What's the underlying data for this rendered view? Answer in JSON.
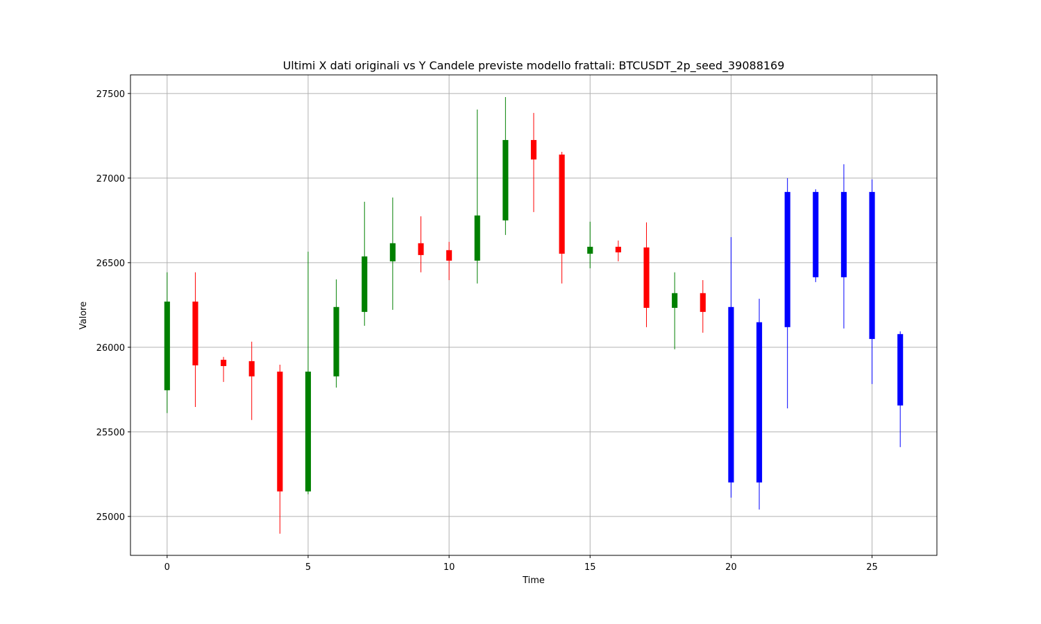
{
  "chart_data": {
    "type": "candlestick",
    "title": "Ultimi X dati originali vs Y Candele previste modello frattali: BTCUSDT_2p_seed_39088169",
    "x_label": "Time",
    "y_label": "Valore",
    "x": [
      0,
      1,
      2,
      3,
      4,
      5,
      6,
      7,
      8,
      9,
      10,
      11,
      12,
      13,
      14,
      15,
      16,
      17,
      18,
      19,
      20,
      21,
      22,
      23,
      24,
      25,
      26
    ],
    "open": [
      25746,
      26270,
      25926,
      25918,
      25856,
      25148,
      25828,
      26209,
      26508,
      26615,
      26574,
      26512,
      26750,
      27225,
      27139,
      26553,
      26594,
      26590,
      26233,
      26320,
      26238,
      25201,
      26119,
      26414,
      26414,
      26918,
      26078
    ],
    "high": [
      26443,
      26443,
      25943,
      26033,
      25897,
      26565,
      26401,
      26860,
      26885,
      26774,
      26623,
      27405,
      27479,
      27385,
      27155,
      26742,
      26631,
      26738,
      26443,
      26397,
      26651,
      26287,
      27000,
      26934,
      27082,
      26992,
      26094
    ],
    "low": [
      25611,
      25647,
      25795,
      25570,
      24898,
      25131,
      25762,
      26127,
      26221,
      26443,
      26397,
      26377,
      26664,
      26799,
      26377,
      26467,
      26508,
      26119,
      25988,
      26086,
      25111,
      25041,
      25639,
      26385,
      26111,
      25783,
      25410
    ],
    "close": [
      26270,
      25893,
      25889,
      25828,
      25148,
      25856,
      26238,
      26537,
      26615,
      26545,
      26512,
      26779,
      27225,
      27110,
      26553,
      26594,
      26561,
      26233,
      26320,
      26209,
      25201,
      26148,
      26918,
      26918,
      26918,
      26049,
      25656
    ],
    "colors": [
      "green",
      "red",
      "red",
      "red",
      "red",
      "green",
      "green",
      "green",
      "green",
      "red",
      "red",
      "green",
      "green",
      "red",
      "red",
      "green",
      "red",
      "red",
      "green",
      "red",
      "blue",
      "blue",
      "blue",
      "blue",
      "blue",
      "blue",
      "blue"
    ],
    "xlim": [
      -1.3,
      27.3
    ],
    "ylim": [
      24770,
      27610
    ],
    "xticks": [
      0,
      5,
      10,
      15,
      20,
      25
    ],
    "yticks": [
      25000,
      25500,
      26000,
      26500,
      27000,
      27500
    ],
    "grid": true
  }
}
